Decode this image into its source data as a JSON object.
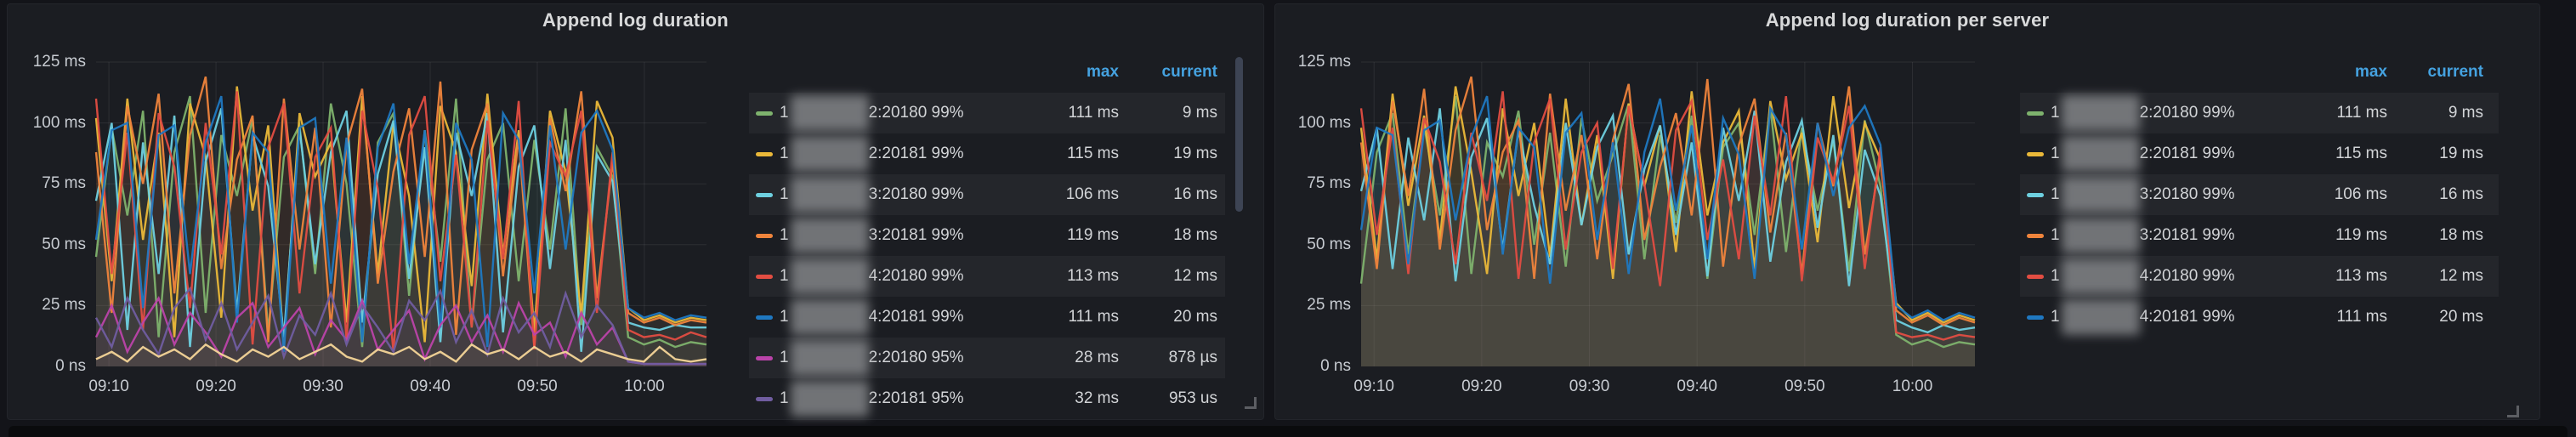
{
  "ui": {
    "page_bg": "#131419",
    "panel_bg": "#1b1d22",
    "legend_header_color": "#45a2e0",
    "axis_text_color": "#c7cbd1"
  },
  "panels": [
    {
      "title": "Append log duration",
      "y_ticks": [
        "125 ms",
        "100 ms",
        "75 ms",
        "50 ms",
        "25 ms",
        "0 ns"
      ],
      "x_ticks": [
        "09:10",
        "09:20",
        "09:30",
        "09:40",
        "09:50",
        "10:00"
      ],
      "legend": {
        "max_header": "max",
        "current_header": "current",
        "has_scrollbar": true,
        "rows": [
          {
            "color": "#7EB26D",
            "prefix": "1",
            "redacted": true,
            "suffix": "2:20180 99%",
            "max": "111 ms",
            "current": "9 ms"
          },
          {
            "color": "#EAB839",
            "prefix": "1",
            "redacted": true,
            "suffix": "2:20181 99%",
            "max": "115 ms",
            "current": "19 ms"
          },
          {
            "color": "#6ED0E0",
            "prefix": "1",
            "redacted": true,
            "suffix": "3:20180 99%",
            "max": "106 ms",
            "current": "16 ms"
          },
          {
            "color": "#EF843C",
            "prefix": "1",
            "redacted": true,
            "suffix": "3:20181 99%",
            "max": "119 ms",
            "current": "18 ms"
          },
          {
            "color": "#E24D42",
            "prefix": "1",
            "redacted": true,
            "suffix": "4:20180 99%",
            "max": "113 ms",
            "current": "12 ms"
          },
          {
            "color": "#1F78C1",
            "prefix": "1",
            "redacted": true,
            "suffix": "4:20181 99%",
            "max": "111 ms",
            "current": "20 ms"
          },
          {
            "color": "#BA43A9",
            "prefix": "1",
            "redacted": true,
            "suffix": "2:20180 95%",
            "max": "28 ms",
            "current": "878 µs"
          },
          {
            "color": "#705DA0",
            "prefix": "1",
            "redacted": true,
            "suffix": "2:20181 95%",
            "max": "32 ms",
            "current": "953 us"
          }
        ]
      },
      "chart_data": {
        "type": "line",
        "unit": "ms",
        "ylim": [
          0,
          125
        ],
        "x_range": [
          "09:08",
          "10:06"
        ],
        "x_ticks": [
          "09:10",
          "09:20",
          "09:30",
          "09:40",
          "09:50",
          "10:00"
        ],
        "grid": true,
        "legend_position": "right-table",
        "series": [
          {
            "name": "1•2:20180 99%",
            "color": "#7EB26D",
            "values": [
              45,
              98,
              62,
              105,
              12,
              88,
              111,
              22,
              95,
              70,
              102,
              14,
              86,
              99,
              38,
              108,
              75,
              8,
              92,
              104,
              29,
              97,
              43,
              110,
              16,
              85,
              100,
              35,
              93,
              48,
              106,
              17,
              90,
              78,
              12,
              9,
              11,
              8,
              10,
              9
            ]
          },
          {
            "name": "1•2:20181 99%",
            "color": "#EAB839",
            "values": [
              102,
              35,
              110,
              52,
              96,
              12,
              108,
              86,
              20,
              115,
              64,
              99,
              8,
              104,
              78,
              92,
              18,
              111,
              38,
              100,
              70,
              10,
              107,
              88,
              33,
              112,
              46,
              97,
              14,
              105,
              80,
              21,
              109,
              94,
              24,
              19,
              21,
              18,
              20,
              19
            ]
          },
          {
            "name": "1•3:20180 99%",
            "color": "#6ED0E0",
            "values": [
              68,
              100,
              15,
              92,
              38,
              103,
              8,
              84,
              106,
              22,
              95,
              74,
              12,
              98,
              42,
              88,
              105,
              18,
              79,
              101,
              36,
              90,
              10,
              96,
              70,
              104,
              14,
              82,
              99,
              40,
              93,
              6,
              87,
              76,
              18,
              16,
              15,
              17,
              16,
              16
            ]
          },
          {
            "name": "1•3:20181 99%",
            "color": "#EF843C",
            "values": [
              88,
              22,
              107,
              75,
              112,
              30,
              95,
              119,
              40,
              85,
              103,
              10,
              110,
              48,
              98,
              16,
              91,
              114,
              34,
              80,
              106,
              45,
              117,
              13,
              89,
              108,
              37,
              94,
              8,
              102,
              72,
              113,
              28,
              84,
              22,
              18,
              20,
              17,
              19,
              18
            ]
          },
          {
            "name": "1•4:20180 99%",
            "color": "#E24D42",
            "values": [
              110,
              38,
              96,
              15,
              104,
              82,
              24,
              100,
              46,
              113,
              9,
              90,
              108,
              30,
              86,
              98,
              11,
              105,
              73,
              6,
              95,
              111,
              35,
              87,
              16,
              101,
              44,
              109,
              7,
              92,
              78,
              105,
              22,
              88,
              15,
              12,
              13,
              11,
              14,
              12
            ]
          },
          {
            "name": "1•4:20181 99%",
            "color": "#1F78C1",
            "values": [
              52,
              97,
              100,
              24,
              95,
              99,
              38,
              92,
              111,
              18,
              96,
              88,
              6,
              98,
              102,
              34,
              94,
              10,
              90,
              108,
              42,
              97,
              16,
              100,
              85,
              8,
              104,
              93,
              30,
              99,
              48,
              96,
              105,
              89,
              24,
              20,
              22,
              19,
              21,
              20
            ]
          },
          {
            "name": "1•2:20180 95%",
            "color": "#BA43A9",
            "values": [
              12,
              25,
              6,
              18,
              28,
              9,
              22,
              14,
              4,
              20,
              26,
              8,
              16,
              24,
              5,
              19,
              11,
              27,
              7,
              15,
              23,
              3,
              17,
              25,
              10,
              21,
              6,
              26,
              13,
              18,
              4,
              22,
              9,
              16,
              2,
              1,
              1,
              1,
              1,
              1
            ]
          },
          {
            "name": "1•2:20181 95%",
            "color": "#705DA0",
            "values": [
              20,
              8,
              28,
              15,
              5,
              24,
              32,
              11,
              26,
              7,
              18,
              29,
              4,
              21,
              13,
              30,
              9,
              25,
              16,
              6,
              27,
              19,
              31,
              10,
              23,
              5,
              28,
              14,
              22,
              8,
              30,
              12,
              25,
              17,
              2,
              1,
              1,
              1,
              1,
              1
            ]
          },
          {
            "name": "",
            "color": "#F4D598",
            "values": [
              3,
              6,
              2,
              8,
              4,
              7,
              3,
              9,
              5,
              2,
              7,
              4,
              8,
              3,
              6,
              9,
              4,
              2,
              7,
              5,
              8,
              3,
              6,
              2,
              9,
              5,
              7,
              3,
              8,
              4,
              6,
              2,
              7,
              5,
              3,
              2,
              8,
              3,
              2,
              3
            ]
          }
        ]
      }
    },
    {
      "title": "Append log duration per server",
      "y_ticks": [
        "125 ms",
        "100 ms",
        "75 ms",
        "50 ms",
        "25 ms",
        "0 ns"
      ],
      "x_ticks": [
        "09:10",
        "09:20",
        "09:30",
        "09:40",
        "09:50",
        "10:00"
      ],
      "legend": {
        "max_header": "max",
        "current_header": "current",
        "has_scrollbar": false,
        "rows": [
          {
            "color": "#7EB26D",
            "prefix": "1",
            "redacted": true,
            "suffix": "2:20180 99%",
            "max": "111 ms",
            "current": "9 ms"
          },
          {
            "color": "#EAB839",
            "prefix": "1",
            "redacted": true,
            "suffix": "2:20181 99%",
            "max": "115 ms",
            "current": "19 ms"
          },
          {
            "color": "#6ED0E0",
            "prefix": "1",
            "redacted": true,
            "suffix": "3:20180 99%",
            "max": "106 ms",
            "current": "16 ms"
          },
          {
            "color": "#EF843C",
            "prefix": "1",
            "redacted": true,
            "suffix": "3:20181 99%",
            "max": "119 ms",
            "current": "18 ms"
          },
          {
            "color": "#E24D42",
            "prefix": "1",
            "redacted": true,
            "suffix": "4:20180 99%",
            "max": "113 ms",
            "current": "12 ms"
          },
          {
            "color": "#1F78C1",
            "prefix": "1",
            "redacted": true,
            "suffix": "4:20181 99%",
            "max": "111 ms",
            "current": "20 ms"
          }
        ]
      },
      "chart_data": {
        "type": "line",
        "unit": "ms",
        "ylim": [
          0,
          125
        ],
        "x_range": [
          "09:08",
          "10:06"
        ],
        "x_ticks": [
          "09:10",
          "09:20",
          "09:30",
          "09:40",
          "09:50",
          "10:00"
        ],
        "grid": true,
        "legend_position": "right-table",
        "series": [
          {
            "name": "1•2:20180 99%",
            "color": "#7EB26D",
            "values": [
              34,
              88,
              104,
              46,
              99,
              62,
              111,
              38,
              92,
              78,
              105,
              50,
              96,
              41,
              102,
              68,
              87,
              108,
              44,
              95,
              59,
              103,
              36,
              90,
              100,
              54,
              107,
              47,
              98,
              64,
              93,
              39,
              101,
              74,
              13,
              9,
              11,
              8,
              10,
              9
            ]
          },
          {
            "name": "1•2:20181 99%",
            "color": "#EAB839",
            "values": [
              98,
              44,
              112,
              66,
              103,
              52,
              115,
              80,
              38,
              106,
              70,
              100,
              45,
              110,
              58,
              95,
              36,
              108,
              74,
              99,
              47,
              113,
              62,
              92,
              105,
              40,
              109,
              77,
              96,
              51,
              111,
              65,
              100,
              85,
              26,
              19,
              22,
              18,
              21,
              19
            ]
          },
          {
            "name": "1•3:20180 99%",
            "color": "#6ED0E0",
            "values": [
              72,
              98,
              40,
              94,
              60,
              106,
              35,
              86,
              102,
              48,
              97,
              66,
              42,
              100,
              58,
              90,
              103,
              46,
              81,
              99,
              54,
              92,
              37,
              98,
              68,
              105,
              43,
              84,
              101,
              57,
              95,
              33,
              89,
              70,
              19,
              16,
              14,
              17,
              15,
              16
            ]
          },
          {
            "name": "1•3:20181 99%",
            "color": "#EF843C",
            "values": [
              92,
              40,
              109,
              70,
              114,
              48,
              97,
              119,
              56,
              88,
              101,
              36,
              112,
              64,
              95,
              44,
              93,
              116,
              52,
              82,
              104,
              62,
              118,
              41,
              91,
              110,
              55,
              96,
              38,
              100,
              74,
              115,
              46,
              86,
              23,
              18,
              21,
              17,
              20,
              18
            ]
          },
          {
            "name": "1•4:20180 99%",
            "color": "#E24D42",
            "values": [
              106,
              54,
              98,
              38,
              102,
              84,
              42,
              96,
              68,
              113,
              36,
              92,
              110,
              48,
              88,
              100,
              40,
              107,
              75,
              33,
              97,
              109,
              52,
              85,
              44,
              103,
              62,
              111,
              35,
              94,
              76,
              107,
              40,
              90,
              14,
              12,
              13,
              11,
              13,
              12
            ]
          },
          {
            "name": "1•4:20181 99%",
            "color": "#1F78C1",
            "values": [
              56,
              98,
              95,
              42,
              97,
              101,
              60,
              94,
              111,
              46,
              98,
              90,
              34,
              96,
              104,
              52,
              92,
              38,
              88,
              110,
              64,
              99,
              44,
              102,
              87,
              36,
              106,
              95,
              48,
              100,
              70,
              98,
              107,
              91,
              25,
              20,
              23,
              19,
              22,
              20
            ]
          }
        ]
      }
    }
  ]
}
